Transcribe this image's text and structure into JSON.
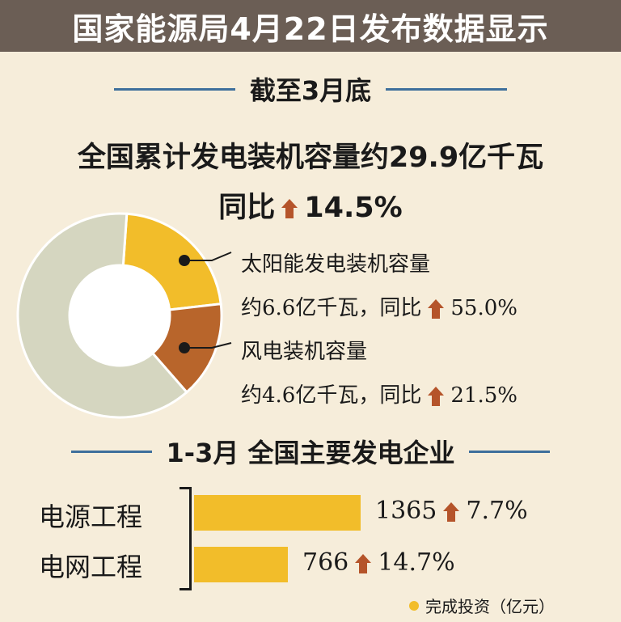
{
  "header": {
    "title": "国家能源局4月22日发布数据显示"
  },
  "section1": {
    "heading": "截至3月底",
    "capacity_text": "全国累计发电装机容量约29.9亿千瓦",
    "yoy_prefix": "同比",
    "yoy_value": "14.5%"
  },
  "section2": {
    "heading": "1-3月 全国主要发电企业"
  },
  "legend": {
    "solar_title": "太阳能发电装机容量",
    "solar_amount": "约6.6亿千瓦，同比",
    "solar_growth": "55.0%",
    "wind_title": "风电装机容量",
    "wind_amount": "约4.6亿千瓦，同比",
    "wind_growth": "21.5%",
    "unit_note": "完成投资（亿元）"
  },
  "bars": {
    "power_source_label": "电源工程",
    "power_source_value": "1365",
    "power_source_growth": "7.7%",
    "power_grid_label": "电网工程",
    "power_grid_value": "766",
    "power_grid_growth": "14.7%"
  },
  "colors": {
    "solar": "#f2bd2a",
    "wind": "#b8652b",
    "other": "#d5d6c0",
    "bar": "#f2bd2a",
    "arrow": "#b5542a",
    "banner": "#6b5e55",
    "rule": "#3e6f9c"
  },
  "chart_data": [
    {
      "type": "pie",
      "total": 29.9,
      "unit": "亿千瓦",
      "slices": [
        {
          "name": "太阳能发电装机容量",
          "value": 6.6,
          "yoy_growth_pct": 55.0
        },
        {
          "name": "风电装机容量",
          "value": 4.6,
          "yoy_growth_pct": 21.5
        },
        {
          "name": "",
          "value": 18.7
        }
      ]
    },
    {
      "type": "bar",
      "categories": [
        "电源工程",
        "电网工程"
      ],
      "values": [
        1365,
        766
      ],
      "growth_pct": [
        7.7,
        14.7
      ],
      "unit": "亿元"
    }
  ]
}
